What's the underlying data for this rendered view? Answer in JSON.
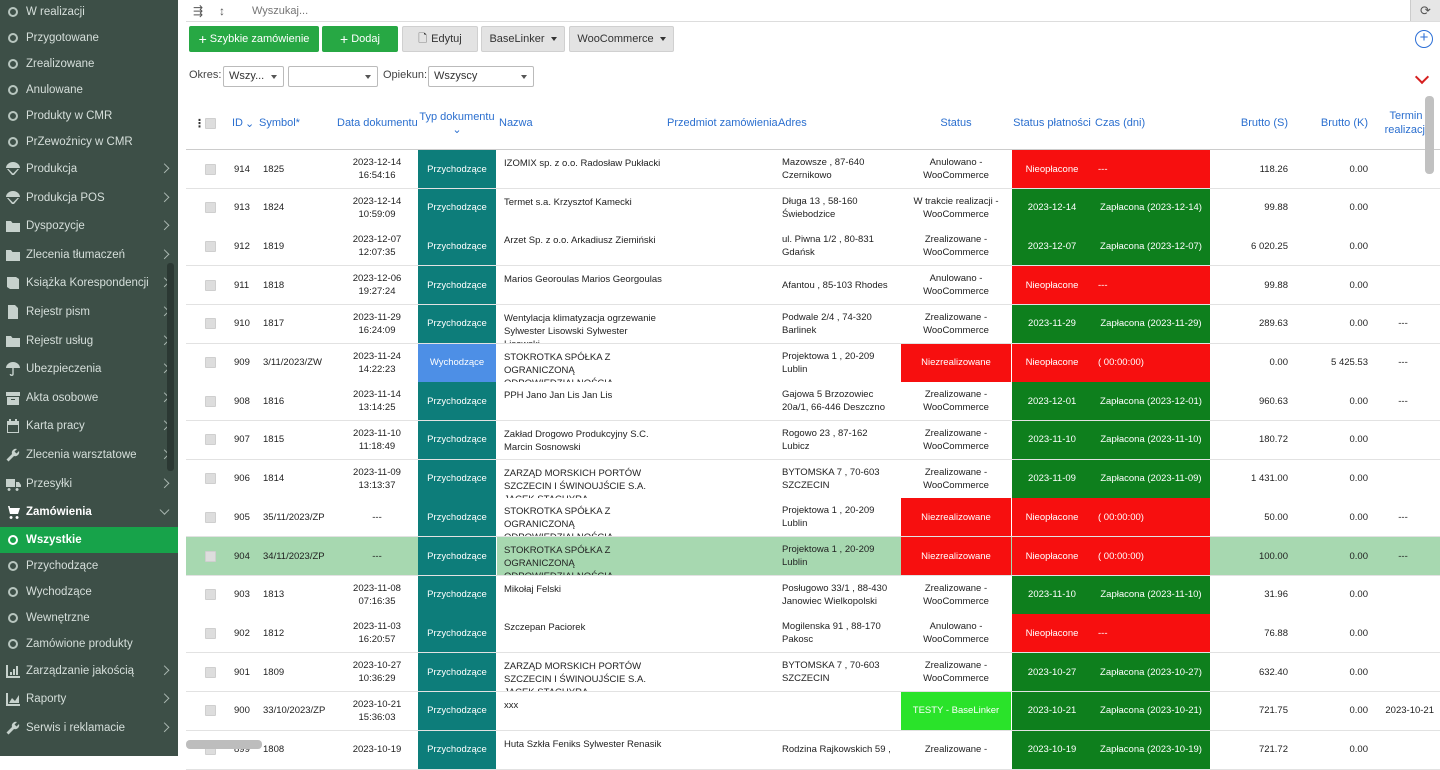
{
  "sidebar": {
    "items": [
      {
        "label": "W realizacji",
        "kind": "sub",
        "icon": "circle-icon"
      },
      {
        "label": "Przygotowane",
        "kind": "sub",
        "icon": "circle-icon"
      },
      {
        "label": "Zrealizowane",
        "kind": "sub",
        "icon": "circle-icon"
      },
      {
        "label": "Anulowane",
        "kind": "sub",
        "icon": "circle-icon"
      },
      {
        "label": "Produkty w CMR",
        "kind": "sub",
        "icon": "circle-icon"
      },
      {
        "label": "PrZewoźnicy w CMR",
        "kind": "sub",
        "icon": "circle-icon"
      },
      {
        "label": "Produkcja",
        "kind": "main",
        "icon": "parachute-icon",
        "chev": true
      },
      {
        "label": "Produkcja POS",
        "kind": "main",
        "icon": "parachute-icon",
        "chev": true
      },
      {
        "label": "Dyspozycje",
        "kind": "main",
        "icon": "folder-icon",
        "chev": true
      },
      {
        "label": "Zlecenia tłumaczeń",
        "kind": "main",
        "icon": "folder-icon",
        "chev": true
      },
      {
        "label": "Książka Korespondencji",
        "kind": "main",
        "icon": "book-icon",
        "chev": true
      },
      {
        "label": "Rejestr pism",
        "kind": "main",
        "icon": "document-icon",
        "chev": true
      },
      {
        "label": "Rejestr usług",
        "kind": "main",
        "icon": "folder-icon",
        "chev": true
      },
      {
        "label": "Ubezpieczenia",
        "kind": "main",
        "icon": "umbrella-icon",
        "chev": true
      },
      {
        "label": "Akta osobowe",
        "kind": "main",
        "icon": "archive-icon",
        "chev": true
      },
      {
        "label": "Karta pracy",
        "kind": "main",
        "icon": "calendar-icon",
        "chev": true
      },
      {
        "label": "Zlecenia warsztatowe",
        "kind": "main",
        "icon": "wrench-icon",
        "chev": true
      },
      {
        "label": "Przesyłki",
        "kind": "main",
        "icon": "truck-icon",
        "chev": true
      },
      {
        "label": "Zamówienia",
        "kind": "main",
        "icon": "cart-icon",
        "chev": true,
        "open": true
      },
      {
        "label": "Wszystkie",
        "kind": "sub",
        "icon": "circle-icon",
        "active": true
      },
      {
        "label": "Przychodzące",
        "kind": "sub",
        "icon": "circle-icon"
      },
      {
        "label": "Wychodzące",
        "kind": "sub",
        "icon": "circle-icon"
      },
      {
        "label": "Wewnętrzne",
        "kind": "sub",
        "icon": "circle-icon"
      },
      {
        "label": "Zamówione produkty",
        "kind": "sub",
        "icon": "circle-icon"
      },
      {
        "label": "Zarządzanie jakością",
        "kind": "main",
        "icon": "chart-icon",
        "chev": true
      },
      {
        "label": "Raporty",
        "kind": "main",
        "icon": "area-chart-icon",
        "chev": true
      },
      {
        "label": "Serwis i reklamacie",
        "kind": "main",
        "icon": "wrench-icon",
        "chev": true
      }
    ]
  },
  "search": {
    "placeholder": "Wyszukaj..."
  },
  "toolbar": {
    "quick_order": "Szybkie zamówienie",
    "add": "Dodaj",
    "edit": "Edytuj",
    "baselinker": "BaseLinker",
    "woocommerce": "WooCommerce"
  },
  "filters": {
    "okres_label": "Okres:",
    "okres_value": "Wszy...",
    "second_value": "",
    "opiekun_label": "Opiekun:",
    "opiekun_value": "Wszyscy"
  },
  "columns": {
    "id": "ID",
    "symbol": "Symbol*",
    "data": "Data dokumentu",
    "typ": "Typ dokumentu",
    "nazwa": "Nazwa",
    "przedmiot": "Przedmiot zamówienia",
    "adres": "Adres",
    "status": "Status",
    "status_platnosci": "Status płatności",
    "czas": "Czas (dni)",
    "brutto_s": "Brutto (S)",
    "brutto_k": "Brutto (K)",
    "termin": "Termin realizacji"
  },
  "rows": [
    {
      "id": "914",
      "symbol": "1825",
      "date": "2023-12-14",
      "time": "16:54:16",
      "typ": "Przychodzące",
      "typ_kind": "in",
      "nazwa": "IZOMIX sp. z o.o. Radosław Pukłacki",
      "adres": "Mazowsze , 87-640 Czernikowo",
      "status": "Anulowano - WooCommerce",
      "status_kind": "plain",
      "pay": "Nieopłacone",
      "pay_kind": "red",
      "czas": "---",
      "czas_kind": "red",
      "bs": "118.26",
      "bk": "0.00",
      "termin": ""
    },
    {
      "id": "913",
      "symbol": "1824",
      "date": "2023-12-14",
      "time": "10:59:09",
      "typ": "Przychodzące",
      "typ_kind": "in",
      "nazwa": "Termet s.a. Krzysztof Kamecki",
      "adres": "Długa 13 , 58-160 Świebodzice",
      "status": "W trakcie realizacji - WooCommerce",
      "status_kind": "plain",
      "pay": "2023-12-14",
      "pay_kind": "green",
      "czas": "Zapłacona (2023-12-14)",
      "czas_kind": "green",
      "bs": "99.88",
      "bk": "0.00",
      "termin": ""
    },
    {
      "id": "912",
      "symbol": "1819",
      "date": "2023-12-07",
      "time": "12:07:35",
      "typ": "Przychodzące",
      "typ_kind": "in",
      "nazwa": "Arzet Sp. z o.o. Arkadiusz Ziemiński",
      "adres": "ul. Piwna 1/2 , 80-831 Gdańsk",
      "status": "Zrealizowane - WooCommerce",
      "status_kind": "plain",
      "pay": "2023-12-07",
      "pay_kind": "green",
      "czas": "Zapłacona (2023-12-07)",
      "czas_kind": "green",
      "bs": "6 020.25",
      "bk": "0.00",
      "termin": ""
    },
    {
      "id": "911",
      "symbol": "1818",
      "date": "2023-12-06",
      "time": "19:27:24",
      "typ": "Przychodzące",
      "typ_kind": "in",
      "nazwa": "Marios Georoulas Marios Georgoulas",
      "adres": "Afantou , 85-103 Rhodes",
      "status": "Anulowano - WooCommerce",
      "status_kind": "plain",
      "pay": "Nieopłacone",
      "pay_kind": "red",
      "czas": "---",
      "czas_kind": "red",
      "bs": "99.88",
      "bk": "0.00",
      "termin": ""
    },
    {
      "id": "910",
      "symbol": "1817",
      "date": "2023-11-29",
      "time": "16:24:09",
      "typ": "Przychodzące",
      "typ_kind": "in",
      "nazwa": "Wentylacja klimatyzacja ogrzewanie Sylwester Lisowski Sylwester Lisowski",
      "adres": "Podwale 2/4 , 74-320 Barlinek",
      "status": "Zrealizowane - WooCommerce",
      "status_kind": "plain",
      "pay": "2023-11-29",
      "pay_kind": "green",
      "czas": "Zapłacona (2023-11-29)",
      "czas_kind": "green",
      "bs": "289.63",
      "bk": "0.00",
      "termin": "---"
    },
    {
      "id": "909",
      "symbol": "3/11/2023/ZW",
      "date": "2023-11-24",
      "time": "14:22:23",
      "typ": "Wychodzące",
      "typ_kind": "out",
      "nazwa": "STOKROTKA SPÓŁKA Z OGRANICZONĄ ODPOWIEDZIALNOŚCIĄ",
      "adres": "Projektowa 1 , 20-209 Lublin",
      "status": "Niezrealizowane",
      "status_kind": "red",
      "pay": "Nieopłacone",
      "pay_kind": "red",
      "czas": "( 00:00:00)",
      "czas_kind": "red",
      "bs": "0.00",
      "bk": "5 425.53",
      "termin": "---"
    },
    {
      "id": "908",
      "symbol": "1816",
      "date": "2023-11-14",
      "time": "13:14:25",
      "typ": "Przychodzące",
      "typ_kind": "in",
      "nazwa": "PPH Jano Jan Lis Jan Lis",
      "adres": "Gajowa 5 Brzozowiec 20a/1, 66-446 Deszczno",
      "status": "Zrealizowane - WooCommerce",
      "status_kind": "plain",
      "pay": "2023-12-01",
      "pay_kind": "green",
      "czas": "Zapłacona (2023-12-01)",
      "czas_kind": "green",
      "bs": "960.63",
      "bk": "0.00",
      "termin": "---"
    },
    {
      "id": "907",
      "symbol": "1815",
      "date": "2023-11-10",
      "time": "11:18:49",
      "typ": "Przychodzące",
      "typ_kind": "in",
      "nazwa": "Zakład Drogowo Produkcyjny S.C. Marcin Sosnowski",
      "adres": "Rogowo 23 , 87-162 Lubicz",
      "status": "Zrealizowane - WooCommerce",
      "status_kind": "plain",
      "pay": "2023-11-10",
      "pay_kind": "green",
      "czas": "Zapłacona (2023-11-10)",
      "czas_kind": "green",
      "bs": "180.72",
      "bk": "0.00",
      "termin": ""
    },
    {
      "id": "906",
      "symbol": "1814",
      "date": "2023-11-09",
      "time": "13:13:37",
      "typ": "Przychodzące",
      "typ_kind": "in",
      "nazwa": "ZARZĄD MORSKICH PORTÓW SZCZECIN I ŚWINOUJŚCIE S.A. JACEK STACHYRA",
      "adres": "BYTOMSKA 7 , 70-603 SZCZECIN",
      "status": "Zrealizowane - WooCommerce",
      "status_kind": "plain",
      "pay": "2023-11-09",
      "pay_kind": "green",
      "czas": "Zapłacona (2023-11-09)",
      "czas_kind": "green",
      "bs": "1 431.00",
      "bk": "0.00",
      "termin": ""
    },
    {
      "id": "905",
      "symbol": "35/11/2023/ZP",
      "date": "---",
      "time": "",
      "typ": "Przychodzące",
      "typ_kind": "in",
      "nazwa": "STOKROTKA SPÓŁKA Z OGRANICZONĄ ODPOWIEDZIALNOŚCIĄ",
      "adres": "Projektowa 1 , 20-209 Lublin",
      "status": "Niezrealizowane",
      "status_kind": "red",
      "pay": "Nieopłacone",
      "pay_kind": "red",
      "czas": "( 00:00:00)",
      "czas_kind": "red",
      "bs": "50.00",
      "bk": "0.00",
      "termin": "---"
    },
    {
      "id": "904",
      "symbol": "34/11/2023/ZP",
      "date": "---",
      "time": "",
      "typ": "Przychodzące",
      "typ_kind": "in",
      "nazwa": "STOKROTKA SPÓŁKA Z OGRANICZONĄ ODPOWIEDZIALNOŚCIĄ",
      "adres": "Projektowa 1 , 20-209 Lublin",
      "status": "Niezrealizowane",
      "status_kind": "red",
      "pay": "Nieopłacone",
      "pay_kind": "red",
      "czas": "( 00:00:00)",
      "czas_kind": "red",
      "bs": "100.00",
      "bk": "0.00",
      "termin": "---",
      "highlight": true
    },
    {
      "id": "903",
      "symbol": "1813",
      "date": "2023-11-08",
      "time": "07:16:35",
      "typ": "Przychodzące",
      "typ_kind": "in",
      "nazwa": "Mikołaj Felski",
      "adres": "Posługowo 33/1 , 88-430 Janowiec Wielkopolski",
      "status": "Zrealizowane - WooCommerce",
      "status_kind": "plain",
      "pay": "2023-11-10",
      "pay_kind": "green",
      "czas": "Zapłacona (2023-11-10)",
      "czas_kind": "green",
      "bs": "31.96",
      "bk": "0.00",
      "termin": ""
    },
    {
      "id": "902",
      "symbol": "1812",
      "date": "2023-11-03",
      "time": "16:20:57",
      "typ": "Przychodzące",
      "typ_kind": "in",
      "nazwa": "Szczepan Paciorek",
      "adres": "Mogilenska 91 , 88-170 Pakosc",
      "status": "Anulowano - WooCommerce",
      "status_kind": "plain",
      "pay": "Nieopłacone",
      "pay_kind": "red",
      "czas": "---",
      "czas_kind": "red",
      "bs": "76.88",
      "bk": "0.00",
      "termin": ""
    },
    {
      "id": "901",
      "symbol": "1809",
      "date": "2023-10-27",
      "time": "10:36:29",
      "typ": "Przychodzące",
      "typ_kind": "in",
      "nazwa": "ZARZĄD MORSKICH PORTÓW SZCZECIN I ŚWINOUJŚCIE S.A. JACEK STACHYRA",
      "adres": "BYTOMSKA 7 , 70-603 SZCZECIN",
      "status": "Zrealizowane - WooCommerce",
      "status_kind": "plain",
      "pay": "2023-10-27",
      "pay_kind": "green",
      "czas": "Zapłacona (2023-10-27)",
      "czas_kind": "green",
      "bs": "632.40",
      "bk": "0.00",
      "termin": ""
    },
    {
      "id": "900",
      "symbol": "33/10/2023/ZP",
      "date": "2023-10-21",
      "time": "15:36:03",
      "typ": "Przychodzące",
      "typ_kind": "in",
      "nazwa": "xxx",
      "adres": "",
      "status": "TESTY - BaseLinker",
      "status_kind": "lime",
      "pay": "2023-10-21",
      "pay_kind": "green",
      "czas": "Zapłacona (2023-10-21)",
      "czas_kind": "green",
      "bs": "721.75",
      "bk": "0.00",
      "termin": "2023-10-21"
    },
    {
      "id": "899",
      "symbol": "1808",
      "date": "2023-10-19",
      "time": "",
      "typ": "Przychodzące",
      "typ_kind": "in",
      "nazwa": "Huta Szkła Feniks Sylwester Renasik",
      "adres": "Rodzina Rajkowskich 59 ,",
      "status": "Zrealizowane -",
      "status_kind": "plain",
      "pay": "2023-10-19",
      "pay_kind": "green",
      "czas": "Zapłacona (2023-10-19)",
      "czas_kind": "green",
      "bs": "721.72",
      "bk": "0.00",
      "termin": ""
    }
  ],
  "colors": {
    "sidebar": "#3d4f47",
    "active": "#17a34a",
    "green_btn": "#27a844",
    "typ_in": "#0d7d7a",
    "typ_out": "#4d8fe6",
    "red": "#f70f0f",
    "dark_green": "#0e7f1d",
    "lime": "#2ae32a",
    "highlight": "#a7d8b0",
    "link": "#2b6fcf"
  }
}
